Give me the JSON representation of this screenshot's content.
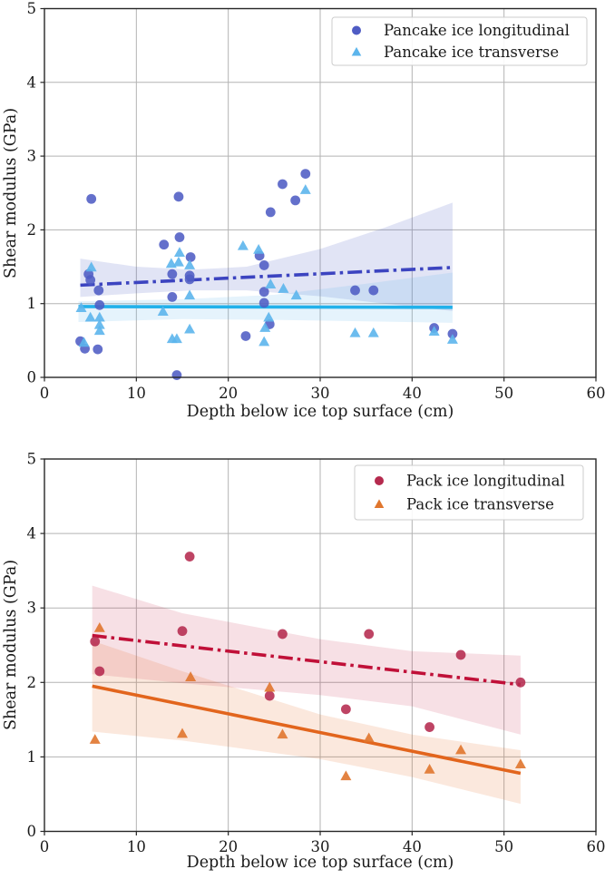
{
  "style": {
    "background": "#ffffff",
    "grid_color": "#b3b3b3",
    "spine_color": "#262626",
    "tick_color": "#262626",
    "text_color": "#1a1a1a",
    "legend_border": "#cccccc",
    "legend_fill": "#ffffff"
  },
  "chart_data": [
    {
      "type": "scatter",
      "name": "pancake-ice-chart",
      "title": "",
      "xlabel": "Depth below ice top surface (cm)",
      "ylabel": "Shear modulus (GPa)",
      "xlim": [
        0,
        60
      ],
      "ylim": [
        0,
        5
      ],
      "xticks": [
        0,
        10,
        20,
        30,
        40,
        50,
        60
      ],
      "yticks": [
        0,
        1,
        2,
        3,
        4,
        5
      ],
      "grid": true,
      "legend_position": "upper right",
      "series": [
        {
          "name": "Pancake ice longitudinal",
          "marker": "circle",
          "color": "#4f5cc4",
          "points": [
            [
              3.9,
              0.49
            ],
            [
              4.4,
              0.39
            ],
            [
              4.8,
              1.4
            ],
            [
              5.0,
              1.32
            ],
            [
              5.1,
              2.42
            ],
            [
              5.8,
              0.38
            ],
            [
              5.9,
              1.18
            ],
            [
              6.0,
              0.98
            ],
            [
              13.0,
              1.8
            ],
            [
              13.9,
              1.4
            ],
            [
              13.9,
              1.09
            ],
            [
              14.4,
              0.03
            ],
            [
              14.6,
              2.45
            ],
            [
              14.7,
              1.9
            ],
            [
              15.8,
              1.38
            ],
            [
              15.8,
              1.33
            ],
            [
              15.9,
              1.63
            ],
            [
              21.9,
              0.56
            ],
            [
              23.4,
              1.65
            ],
            [
              23.9,
              1.52
            ],
            [
              23.9,
              1.16
            ],
            [
              23.9,
              1.01
            ],
            [
              24.5,
              0.72
            ],
            [
              24.6,
              2.24
            ],
            [
              25.9,
              2.62
            ],
            [
              27.3,
              2.4
            ],
            [
              28.4,
              2.76
            ],
            [
              33.8,
              1.18
            ],
            [
              35.8,
              1.18
            ],
            [
              42.4,
              0.67
            ],
            [
              44.4,
              0.59
            ]
          ]
        },
        {
          "name": "Pancake ice transverse",
          "marker": "triangle",
          "color": "#5cb5ec",
          "points": [
            [
              4.0,
              0.94
            ],
            [
              4.3,
              0.47
            ],
            [
              5.0,
              0.81
            ],
            [
              5.1,
              1.49
            ],
            [
              6.0,
              0.81
            ],
            [
              6.0,
              0.71
            ],
            [
              6.0,
              0.63
            ],
            [
              12.9,
              0.89
            ],
            [
              13.8,
              1.54
            ],
            [
              13.9,
              0.52
            ],
            [
              14.4,
              0.52
            ],
            [
              14.6,
              1.56
            ],
            [
              14.7,
              1.69
            ],
            [
              15.8,
              1.52
            ],
            [
              15.8,
              1.11
            ],
            [
              15.8,
              0.65
            ],
            [
              21.6,
              1.78
            ],
            [
              23.3,
              1.73
            ],
            [
              23.9,
              0.48
            ],
            [
              24.0,
              0.67
            ],
            [
              24.4,
              0.81
            ],
            [
              24.6,
              1.26
            ],
            [
              26.0,
              1.2
            ],
            [
              27.4,
              1.11
            ],
            [
              28.4,
              2.54
            ],
            [
              33.8,
              0.6
            ],
            [
              35.8,
              0.6
            ],
            [
              42.4,
              0.62
            ],
            [
              44.4,
              0.51
            ]
          ]
        }
      ],
      "fits": [
        {
          "name": "pancake-longitudinal-fit",
          "style": "dashdot",
          "color": "#3c44c0",
          "x": [
            3.9,
            44.4
          ],
          "y": [
            1.25,
            1.49
          ],
          "band": {
            "color": "#4f5cc4",
            "opacity": 0.17,
            "x": [
              3.9,
              10,
              16,
              22,
              30,
              37,
              44.4
            ],
            "upper": [
              1.61,
              1.5,
              1.46,
              1.5,
              1.74,
              2.03,
              2.37
            ],
            "lower": [
              1.09,
              1.14,
              1.18,
              1.18,
              1.1,
              1.0,
              0.9
            ]
          }
        },
        {
          "name": "pancake-transverse-fit",
          "style": "solid",
          "color": "#22b1ea",
          "x": [
            3.7,
            44.4
          ],
          "y": [
            0.96,
            0.95
          ],
          "band": {
            "color": "#5cb5ec",
            "opacity": 0.16,
            "x": [
              3.7,
              15,
              25,
              35,
              44.4
            ],
            "upper": [
              1.03,
              1.06,
              1.12,
              1.27,
              1.42
            ],
            "lower": [
              0.75,
              0.79,
              0.78,
              0.76,
              0.74
            ]
          }
        }
      ]
    },
    {
      "type": "scatter",
      "name": "pack-ice-chart",
      "title": "",
      "xlabel": "Depth below ice top surface (cm)",
      "ylabel": "Shear modulus (GPa)",
      "xlim": [
        0,
        60
      ],
      "ylim": [
        0,
        5
      ],
      "xticks": [
        0,
        10,
        20,
        30,
        40,
        50,
        60
      ],
      "yticks": [
        0,
        1,
        2,
        3,
        4,
        5
      ],
      "grid": true,
      "legend_position": "upper right",
      "series": [
        {
          "name": "Pack ice longitudinal",
          "marker": "circle",
          "color": "#b52a4e",
          "points": [
            [
              5.5,
              2.55
            ],
            [
              6.0,
              2.15
            ],
            [
              15.0,
              2.69
            ],
            [
              15.8,
              3.69
            ],
            [
              24.5,
              1.82
            ],
            [
              25.9,
              2.65
            ],
            [
              32.8,
              1.64
            ],
            [
              35.3,
              2.65
            ],
            [
              41.9,
              1.4
            ],
            [
              45.3,
              2.37
            ],
            [
              51.8,
              2.0
            ]
          ]
        },
        {
          "name": "Pack ice transverse",
          "marker": "triangle",
          "color": "#e0762e",
          "points": [
            [
              5.5,
              1.23
            ],
            [
              6.0,
              2.73
            ],
            [
              15.0,
              1.31
            ],
            [
              15.9,
              2.07
            ],
            [
              24.5,
              1.93
            ],
            [
              25.9,
              1.3
            ],
            [
              32.8,
              0.74
            ],
            [
              35.3,
              1.25
            ],
            [
              41.9,
              0.83
            ],
            [
              45.3,
              1.09
            ],
            [
              51.8,
              0.9
            ]
          ]
        }
      ],
      "fits": [
        {
          "name": "pack-longitudinal-fit",
          "style": "dashdot",
          "color": "#c01038",
          "x": [
            5.2,
            51.8
          ],
          "y": [
            2.63,
            1.97
          ],
          "band": {
            "color": "#c01038",
            "opacity": 0.13,
            "x": [
              5.2,
              15,
              30,
              40,
              51.8
            ],
            "upper": [
              3.3,
              2.93,
              2.58,
              2.42,
              2.36
            ],
            "lower": [
              2.11,
              1.99,
              1.83,
              1.68,
              1.3
            ]
          }
        },
        {
          "name": "pack-transverse-fit",
          "style": "solid",
          "color": "#e2651d",
          "x": [
            5.2,
            51.8
          ],
          "y": [
            1.95,
            0.78
          ],
          "band": {
            "color": "#e2651d",
            "opacity": 0.15,
            "x": [
              5.2,
              15,
              30,
              40,
              51.8
            ],
            "upper": [
              2.56,
              2.15,
              1.57,
              1.3,
              1.09
            ],
            "lower": [
              1.34,
              1.22,
              0.97,
              0.73,
              0.37
            ]
          }
        }
      ]
    }
  ]
}
